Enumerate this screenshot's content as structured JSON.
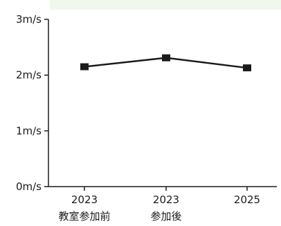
{
  "chart_data": {
    "type": "line",
    "categories": [
      "2023",
      "2023",
      "2025"
    ],
    "category_sublabels": [
      "教室参加前",
      "参加後",
      ""
    ],
    "series": [
      {
        "values": [
          2.15,
          2.31,
          2.13
        ]
      }
    ],
    "yticks": [
      "0m/s",
      "1m/s",
      "2m/s",
      "3m/s"
    ],
    "ylim": [
      0,
      3
    ],
    "grid": false,
    "line_color": "#1a1a1a",
    "band_color": "#f0f8ec"
  }
}
